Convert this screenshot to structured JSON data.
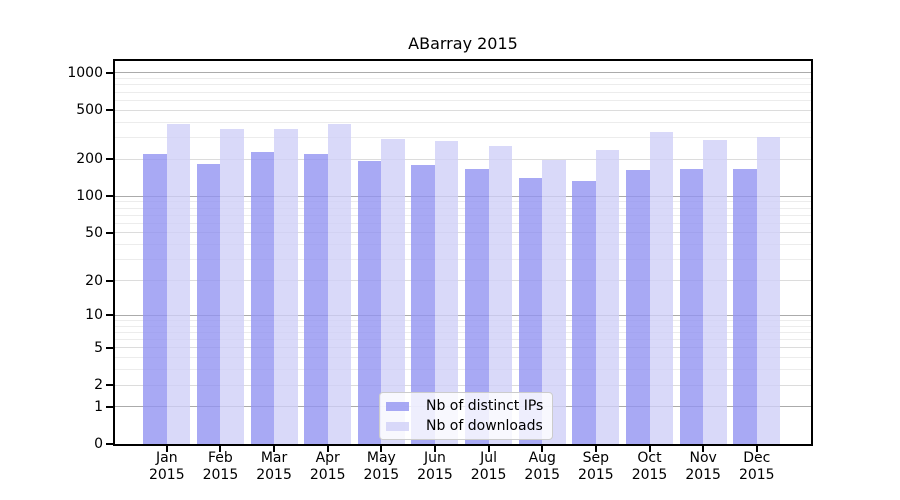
{
  "title": "ABarray 2015",
  "chart_data": {
    "type": "bar",
    "title": "ABarray 2015",
    "categories": [
      "Jan",
      "Feb",
      "Mar",
      "Apr",
      "May",
      "Jun",
      "Jul",
      "Aug",
      "Sep",
      "Oct",
      "Nov",
      "Dec"
    ],
    "x_tick_year": "2015",
    "series": [
      {
        "name": "Nb of distinct IPs",
        "slug": "distinct-ips",
        "color": "#9293f1",
        "values": [
          221,
          183,
          231,
          219,
          194,
          178,
          167,
          141,
          132,
          162,
          166,
          168
        ]
      },
      {
        "name": "Nb of downloads",
        "slug": "downloads",
        "color": "#d0d0f8",
        "values": [
          389,
          353,
          349,
          386,
          291,
          283,
          257,
          198,
          238,
          333,
          284,
          305
        ]
      }
    ],
    "y_ticks": [
      0,
      1,
      2,
      5,
      10,
      20,
      50,
      100,
      200,
      500,
      1000
    ],
    "y_scale": "log1p",
    "ylim": [
      0,
      1260
    ],
    "xlabel": "",
    "ylabel": "",
    "grid": true,
    "legend": {
      "position": "lower center",
      "entries": [
        "Nb of distinct IPs",
        "Nb of downloads"
      ]
    }
  },
  "colors": {
    "bar_distinct_ips": "#a8a9f0",
    "bar_downloads": "#d9d9f9",
    "grid_major": "#ababab",
    "grid_minor": "#ececec",
    "axis": "#000000",
    "background": "#ffffff"
  }
}
